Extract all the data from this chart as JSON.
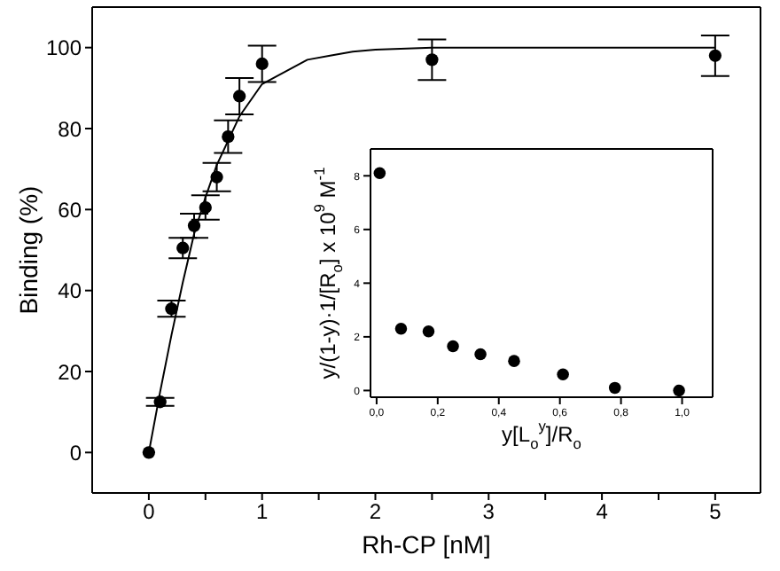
{
  "chart_data": [
    {
      "type": "scatter",
      "xlabel": "Rh-CP [nM]",
      "ylabel": "Binding (%)",
      "xlim": [
        -0.5,
        5.4
      ],
      "ylim": [
        -10,
        110
      ],
      "xticks": [
        0,
        {
          "value": 0.5,
          "label": null
        },
        1,
        {
          "value": 1.5,
          "label": null
        },
        2,
        {
          "value": 2.5,
          "label": null
        },
        3,
        {
          "value": 3.5,
          "label": null
        },
        4,
        {
          "value": 4.5,
          "label": null
        },
        5
      ],
      "yticks": [
        0,
        20,
        40,
        60,
        80,
        100
      ],
      "grid": false,
      "legend": false,
      "series": [
        {
          "marker": "circle",
          "color": "#000000",
          "x": [
            0,
            0.1,
            0.2,
            0.3,
            0.4,
            0.5,
            0.6,
            0.7,
            0.8,
            1.0,
            2.5,
            5.0
          ],
          "values": [
            0,
            12.5,
            35.5,
            50.5,
            56,
            60.5,
            68,
            78,
            88,
            96,
            97,
            98
          ],
          "errors": [
            null,
            1,
            2,
            2.5,
            3,
            3,
            3.5,
            4,
            4.5,
            4.5,
            5,
            5
          ]
        },
        {
          "type": "line",
          "marker": "none",
          "color": "#000000",
          "x": [
            0,
            0.1,
            0.2,
            0.3,
            0.4,
            0.5,
            0.6,
            0.7,
            0.8,
            0.9,
            1.0,
            1.2,
            1.4,
            1.6,
            1.8,
            2.0,
            2.5,
            3,
            4,
            5
          ],
          "values": [
            0,
            15,
            29,
            42,
            54,
            63,
            71,
            77,
            83,
            87,
            91,
            94,
            97,
            98,
            99,
            99.5,
            100,
            100,
            100,
            100
          ]
        }
      ]
    },
    {
      "type": "scatter",
      "xlabel": "y[L$_{o}$$^{y}$]/R$_{o}$",
      "ylabel": "y/(1-y)·1/[R$_{o}$] x 10$^{9}$ M$^{-1}$",
      "xlim": [
        -0.02,
        1.1
      ],
      "ylim": [
        -0.25,
        9
      ],
      "xticks": [
        {
          "value": 0,
          "label": "0,0"
        },
        {
          "value": 0.2,
          "label": "0,2"
        },
        {
          "value": 0.4,
          "label": "0,4"
        },
        {
          "value": 0.6,
          "label": "0,6"
        },
        {
          "value": 0.8,
          "label": "0,8"
        },
        {
          "value": 1,
          "label": "1,0"
        }
      ],
      "yticks": [
        0,
        2,
        4,
        6,
        8
      ],
      "grid": false,
      "legend": false,
      "marker": "circle",
      "color": "#000000",
      "x": [
        0.01,
        0.08,
        0.17,
        0.25,
        0.34,
        0.45,
        0.61,
        0.78,
        0.99
      ],
      "values": [
        8.1,
        2.3,
        2.2,
        1.65,
        1.35,
        1.1,
        0.6,
        0.1,
        0
      ]
    }
  ]
}
